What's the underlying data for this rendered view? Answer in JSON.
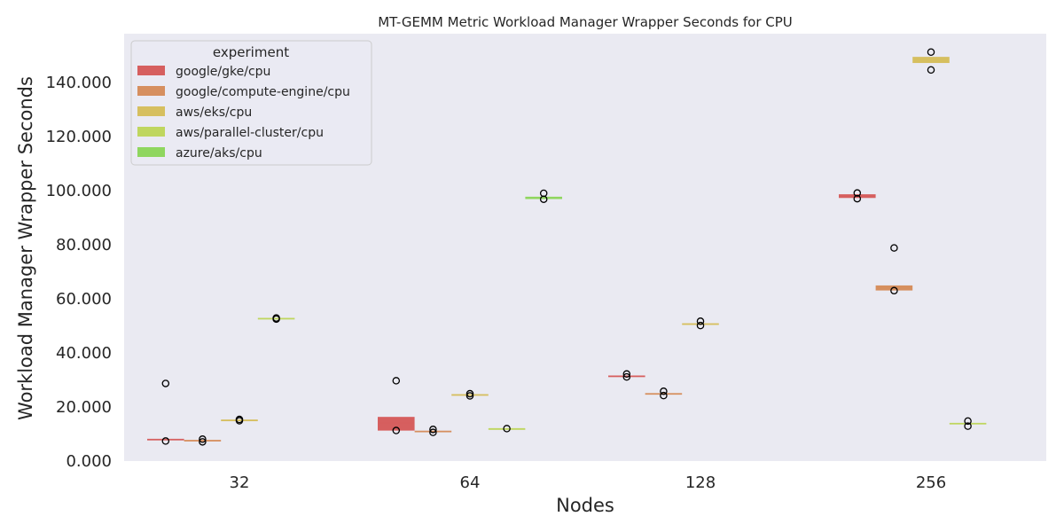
{
  "chart_data": {
    "type": "box",
    "title": "MT-GEMM Metric Workload Manager Wrapper Seconds for CPU",
    "xlabel": "Nodes",
    "ylabel": "Workload Manager Wrapper Seconds",
    "categories": [
      "32",
      "64",
      "128",
      "256"
    ],
    "ylim": [
      0,
      158
    ],
    "yticks": [
      0,
      20,
      40,
      60,
      80,
      100,
      120,
      140
    ],
    "ytick_labels": [
      "0.000",
      "20.000",
      "40.000",
      "60.000",
      "80.000",
      "100.000",
      "120.000",
      "140.000"
    ],
    "grid": false,
    "legend": {
      "title": "experiment",
      "position": "top-left"
    },
    "series": [
      {
        "name": "google/gke/cpu",
        "color": "#d65f5f",
        "boxes": [
          {
            "category": "32",
            "q1": 7.9,
            "median": 8.0,
            "q3": 8.1,
            "outliers": [
              28.7,
              7.4
            ]
          },
          {
            "category": "64",
            "q1": 11.4,
            "median": 14.0,
            "q3": 16.2,
            "outliers": [
              29.7,
              11.3
            ]
          },
          {
            "category": "128",
            "q1": 31.3,
            "median": 31.4,
            "q3": 31.5,
            "outliers": [
              32.2,
              31.1
            ]
          },
          {
            "category": "256",
            "q1": 97.4,
            "median": 98.0,
            "q3": 98.5,
            "outliers": [
              99.1,
              97.0
            ]
          }
        ]
      },
      {
        "name": "google/compute-engine/cpu",
        "color": "#d68f5f",
        "boxes": [
          {
            "category": "32",
            "q1": 7.5,
            "median": 7.6,
            "q3": 7.7,
            "outliers": [
              8.1,
              7.1
            ]
          },
          {
            "category": "64",
            "q1": 10.9,
            "median": 11.0,
            "q3": 11.1,
            "outliers": [
              11.7,
              10.6
            ]
          },
          {
            "category": "128",
            "q1": 24.8,
            "median": 24.9,
            "q3": 25.0,
            "outliers": [
              25.8,
              24.2
            ]
          },
          {
            "category": "256",
            "q1": 63.2,
            "median": 64.0,
            "q3": 64.8,
            "outliers": [
              78.8,
              63.0
            ]
          }
        ]
      },
      {
        "name": "aws/eks/cpu",
        "color": "#d6bf5f",
        "boxes": [
          {
            "category": "32",
            "q1": 15.0,
            "median": 15.1,
            "q3": 15.2,
            "outliers": [
              15.4,
              14.9
            ]
          },
          {
            "category": "64",
            "q1": 24.4,
            "median": 24.5,
            "q3": 24.6,
            "outliers": [
              24.9,
              24.1
            ]
          },
          {
            "category": "128",
            "q1": 50.6,
            "median": 50.7,
            "q3": 50.8,
            "outliers": [
              51.7,
              50.1
            ]
          },
          {
            "category": "256",
            "q1": 147.3,
            "median": 148.5,
            "q3": 149.3,
            "outliers": [
              151.2,
              144.6
            ]
          }
        ]
      },
      {
        "name": "aws/parallel-cluster/cpu",
        "color": "#bfd65f",
        "boxes": [
          {
            "category": "32",
            "q1": 52.6,
            "median": 52.7,
            "q3": 52.8,
            "outliers": [
              52.9,
              52.5
            ]
          },
          {
            "category": "64",
            "q1": 12.0,
            "median": 12.0,
            "q3": 12.0,
            "outliers": [
              12.0
            ]
          },
          {
            "category": "128",
            "q1": null,
            "median": null,
            "q3": null,
            "outliers": []
          },
          {
            "category": "256",
            "q1": 13.8,
            "median": 13.9,
            "q3": 14.0,
            "outliers": [
              14.8,
              12.9
            ]
          }
        ]
      },
      {
        "name": "azure/aks/cpu",
        "color": "#8fd65f",
        "boxes": [
          {
            "category": "32",
            "q1": null,
            "median": null,
            "q3": null,
            "outliers": []
          },
          {
            "category": "64",
            "q1": 97.0,
            "median": 97.3,
            "q3": 97.6,
            "outliers": [
              99.0,
              96.8
            ]
          },
          {
            "category": "128",
            "q1": null,
            "median": null,
            "q3": null,
            "outliers": []
          },
          {
            "category": "256",
            "q1": null,
            "median": null,
            "q3": null,
            "outliers": []
          }
        ]
      }
    ]
  }
}
